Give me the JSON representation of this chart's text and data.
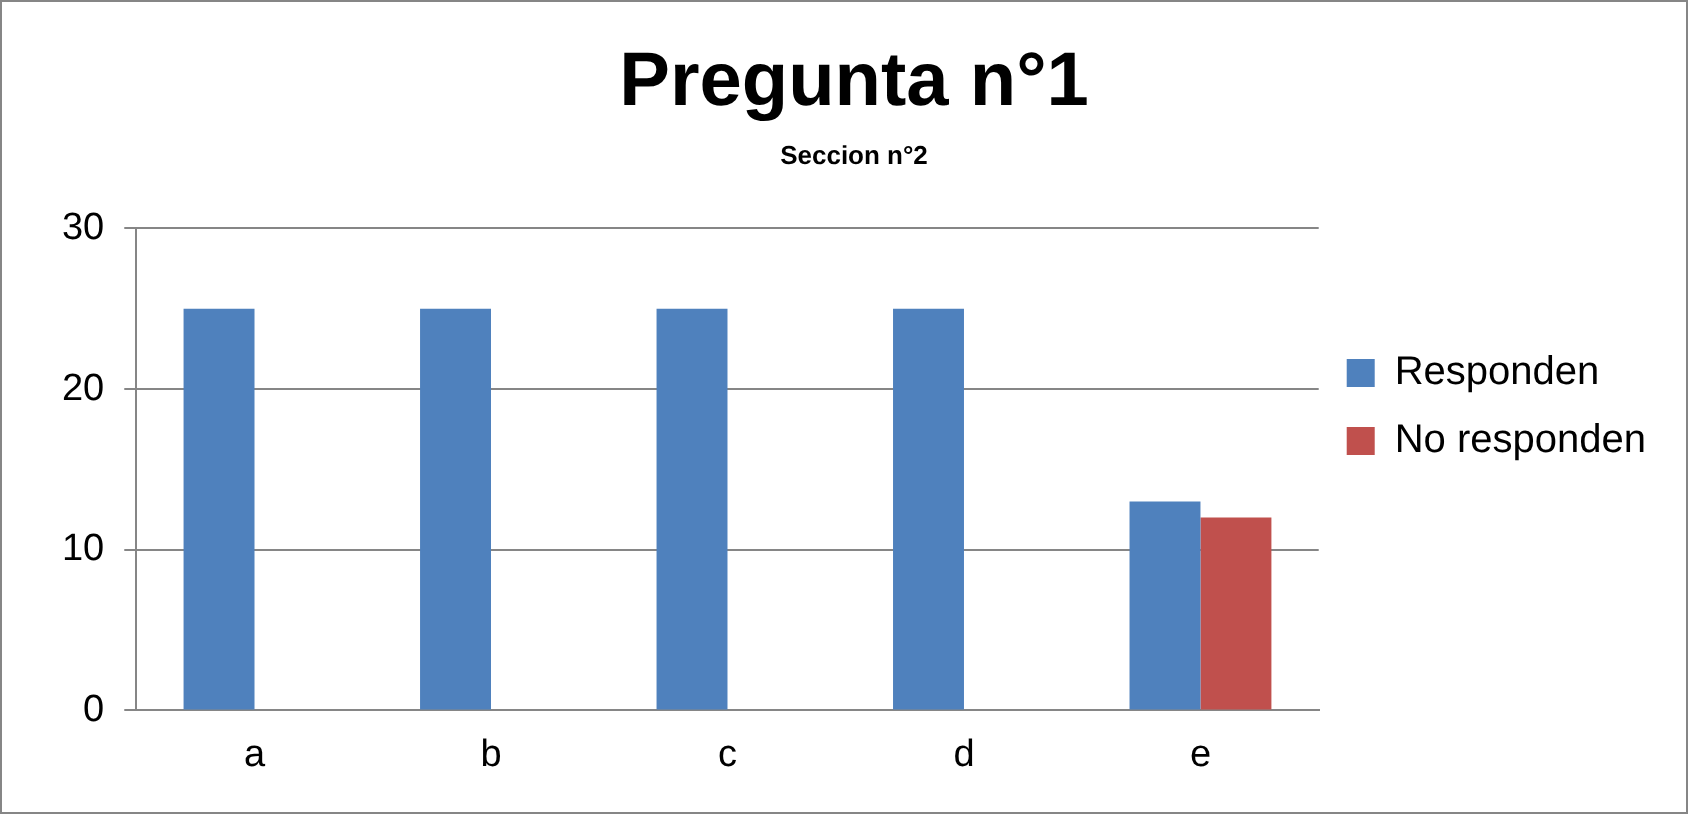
{
  "chart_data": {
    "type": "bar",
    "title": "Pregunta n°1",
    "subtitle": "Seccion n°2",
    "categories": [
      "a",
      "b",
      "c",
      "d",
      "e"
    ],
    "series": [
      {
        "name": "Responden",
        "color": "#4f81bd",
        "values": [
          25,
          25,
          25,
          25,
          13
        ]
      },
      {
        "name": "No responden",
        "color": "#c0504d",
        "values": [
          0,
          0,
          0,
          0,
          12
        ]
      }
    ],
    "ylim": [
      0,
      30
    ],
    "yticks": [
      0,
      10,
      20,
      30
    ],
    "grid": "y",
    "legend": "right"
  }
}
